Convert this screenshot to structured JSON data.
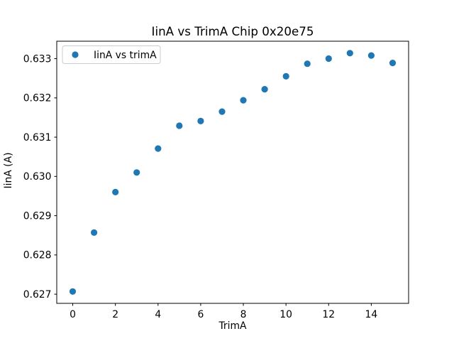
{
  "figure": {
    "background_color": "#ffffff",
    "axis_color": "#000000"
  },
  "chart_data": {
    "type": "scatter",
    "title": "IinA vs TrimA Chip 0x20e75",
    "xlabel": "TrimA",
    "ylabel": "IinA (A)",
    "series": [
      {
        "name": "IinA vs trimA",
        "color": "#1f77b4",
        "x": [
          0,
          1,
          2,
          3,
          4,
          5,
          6,
          7,
          8,
          9,
          10,
          11,
          12,
          13,
          14,
          15
        ],
        "y": [
          0.62707,
          0.62857,
          0.6296,
          0.6301,
          0.63071,
          0.63129,
          0.63141,
          0.63165,
          0.63194,
          0.63222,
          0.63255,
          0.63287,
          0.633,
          0.63314,
          0.63308,
          0.63289
        ]
      }
    ],
    "xlim": [
      -0.75,
      15.75
    ],
    "ylim": [
      0.626767,
      0.633444
    ],
    "xticks": [
      "0",
      "2",
      "4",
      "6",
      "8",
      "10",
      "12",
      "14"
    ],
    "yticks": [
      "0.627",
      "0.628",
      "0.629",
      "0.630",
      "0.631",
      "0.632",
      "0.633"
    ],
    "grid": false,
    "legend": {
      "position": "upper left",
      "label": "IinA vs trimA",
      "border_color": "#cccccc",
      "background_color": "#ffffff"
    }
  }
}
